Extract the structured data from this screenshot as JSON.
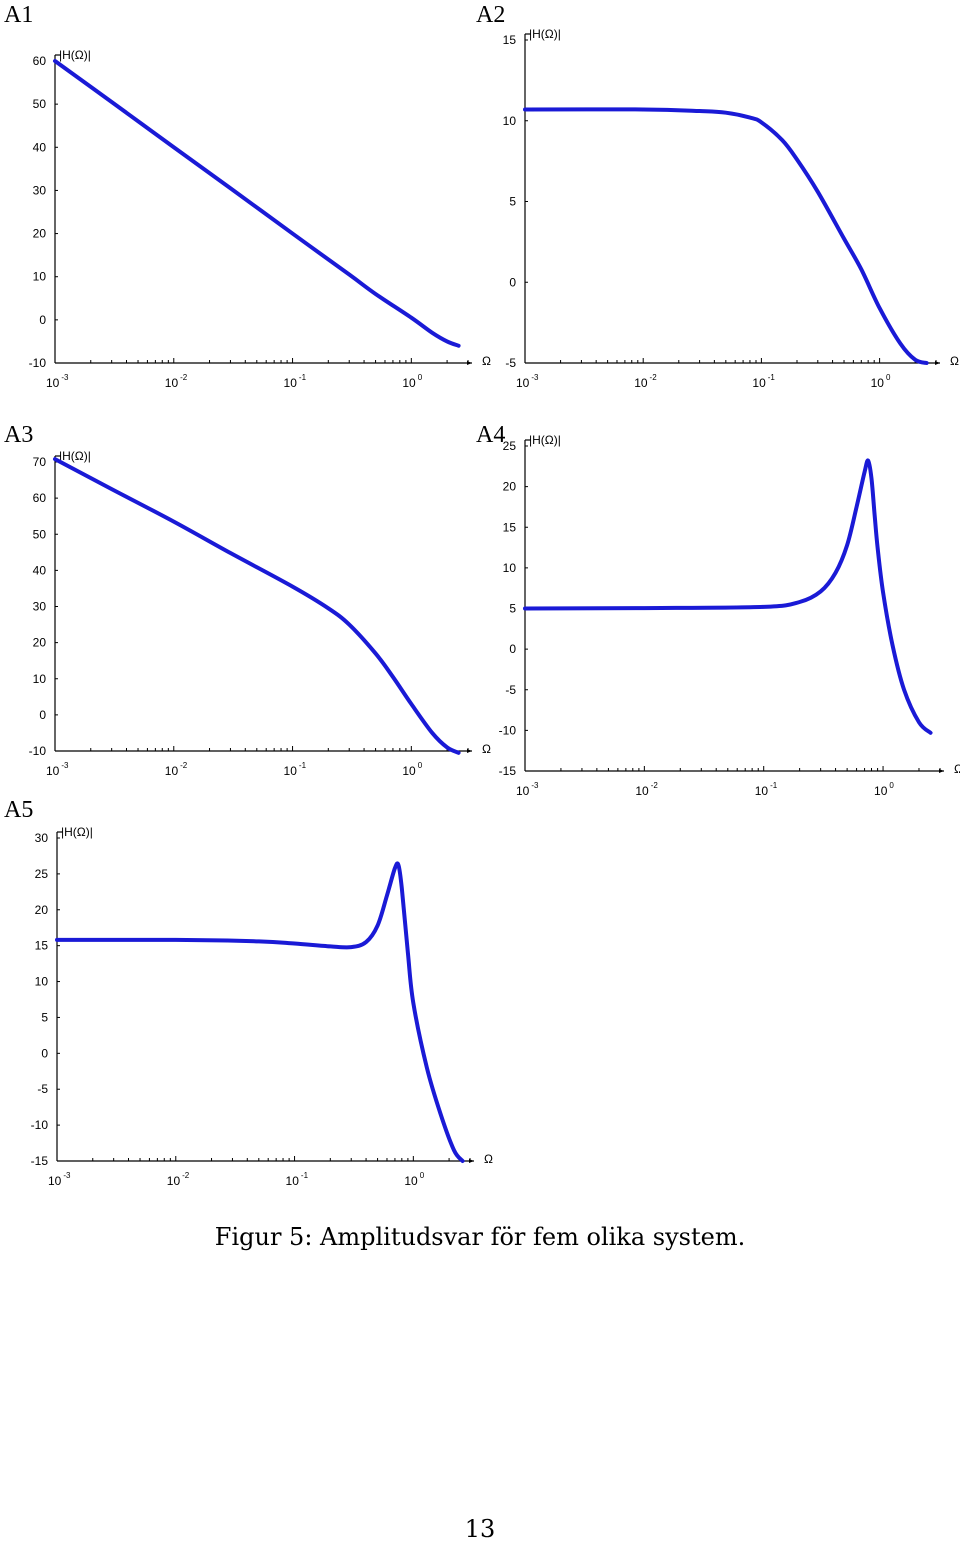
{
  "caption": "Figur 5: Amplitudsvar för fem olika system.",
  "page_number": "13",
  "line_color": "#1a1ad6",
  "chart_data": [
    {
      "id": "A1",
      "type": "line",
      "label": "A1",
      "ylabel": "|H(Ω)|",
      "xlabel": "Ω",
      "x_scale": "log",
      "xlim": [
        0.001,
        3
      ],
      "ylim": [
        -10,
        60
      ],
      "yticks": [
        -10,
        0,
        10,
        20,
        30,
        40,
        50,
        60
      ],
      "xticks": [
        {
          "base": "10",
          "exp": "-3"
        },
        {
          "base": "10",
          "exp": "-2"
        },
        {
          "base": "10",
          "exp": "-1"
        },
        {
          "base": "10",
          "exp": "0"
        }
      ],
      "series": [
        {
          "x": [
            0.001,
            0.003,
            0.01,
            0.03,
            0.1,
            0.3,
            0.5,
            1,
            1.5,
            2,
            2.5
          ],
          "y": [
            60,
            50.5,
            40,
            30.5,
            20,
            10.5,
            6,
            0.5,
            -3,
            -5,
            -6
          ]
        }
      ]
    },
    {
      "id": "A2",
      "type": "line",
      "label": "A2",
      "ylabel": "|H(Ω)|",
      "xlabel": "Ω",
      "x_scale": "log",
      "xlim": [
        0.001,
        3
      ],
      "ylim": [
        -5,
        15
      ],
      "yticks": [
        -5,
        0,
        5,
        10,
        15
      ],
      "xticks": [
        {
          "base": "10",
          "exp": "-3"
        },
        {
          "base": "10",
          "exp": "-2"
        },
        {
          "base": "10",
          "exp": "-1"
        },
        {
          "base": "10",
          "exp": "0"
        }
      ],
      "series": [
        {
          "x": [
            0.001,
            0.01,
            0.03,
            0.05,
            0.08,
            0.1,
            0.15,
            0.2,
            0.3,
            0.5,
            0.7,
            1,
            1.5,
            2,
            2.5
          ],
          "y": [
            10.7,
            10.7,
            10.6,
            10.5,
            10.2,
            9.9,
            8.8,
            7.6,
            5.6,
            2.7,
            0.8,
            -1.6,
            -3.8,
            -4.8,
            -5
          ]
        }
      ]
    },
    {
      "id": "A3",
      "type": "line",
      "label": "A3",
      "ylabel": "|H(Ω)|",
      "xlabel": "Ω",
      "x_scale": "log",
      "xlim": [
        0.001,
        3
      ],
      "ylim": [
        -10,
        70
      ],
      "yticks": [
        -10,
        0,
        10,
        20,
        30,
        40,
        50,
        60,
        70
      ],
      "xticks": [
        {
          "base": "10",
          "exp": "-3"
        },
        {
          "base": "10",
          "exp": "-2"
        },
        {
          "base": "10",
          "exp": "-1"
        },
        {
          "base": "10",
          "exp": "0"
        }
      ],
      "series": [
        {
          "x": [
            0.001,
            0.003,
            0.01,
            0.03,
            0.1,
            0.2,
            0.3,
            0.5,
            0.7,
            1,
            1.5,
            2,
            2.5
          ],
          "y": [
            70.8,
            62.5,
            53.5,
            44.8,
            35.5,
            29.5,
            25,
            17,
            10.5,
            3,
            -5,
            -9,
            -10.5
          ]
        }
      ]
    },
    {
      "id": "A4",
      "type": "line",
      "label": "A4",
      "ylabel": "|H(Ω)|",
      "xlabel": "Ω",
      "x_scale": "log",
      "xlim": [
        0.001,
        3
      ],
      "ylim": [
        -15,
        25
      ],
      "yticks": [
        -15,
        -10,
        -5,
        0,
        5,
        10,
        15,
        20,
        25
      ],
      "xticks": [
        {
          "base": "10",
          "exp": "-3"
        },
        {
          "base": "10",
          "exp": "-2"
        },
        {
          "base": "10",
          "exp": "-1"
        },
        {
          "base": "10",
          "exp": "0"
        }
      ],
      "series": [
        {
          "x": [
            0.001,
            0.01,
            0.1,
            0.2,
            0.3,
            0.4,
            0.5,
            0.6,
            0.7,
            0.75,
            0.8,
            0.85,
            0.9,
            1,
            1.2,
            1.5,
            2,
            2.5
          ],
          "y": [
            5,
            5.05,
            5.2,
            5.8,
            7.1,
            9.4,
            12.8,
            17.5,
            21.8,
            23.2,
            21,
            16.5,
            12.5,
            7,
            0.5,
            -5,
            -9,
            -10.3
          ]
        }
      ]
    },
    {
      "id": "A5",
      "type": "line",
      "label": "A5",
      "ylabel": "|H(Ω)|",
      "xlabel": "Ω",
      "x_scale": "log",
      "xlim": [
        0.001,
        3
      ],
      "ylim": [
        -15,
        30
      ],
      "yticks": [
        -15,
        -10,
        -5,
        0,
        5,
        10,
        15,
        20,
        25,
        30
      ],
      "xticks": [
        {
          "base": "10",
          "exp": "-3"
        },
        {
          "base": "10",
          "exp": "-2"
        },
        {
          "base": "10",
          "exp": "-1"
        },
        {
          "base": "10",
          "exp": "0"
        }
      ],
      "series": [
        {
          "x": [
            0.001,
            0.01,
            0.05,
            0.1,
            0.2,
            0.3,
            0.4,
            0.5,
            0.6,
            0.7,
            0.75,
            0.8,
            0.9,
            1,
            1.3,
            1.7,
            2.2,
            2.6
          ],
          "y": [
            15.8,
            15.8,
            15.6,
            15.3,
            14.9,
            14.8,
            15.5,
            17.8,
            22,
            25.8,
            26.2,
            23,
            14,
            7,
            -2,
            -8.5,
            -13.5,
            -15
          ]
        }
      ]
    }
  ]
}
